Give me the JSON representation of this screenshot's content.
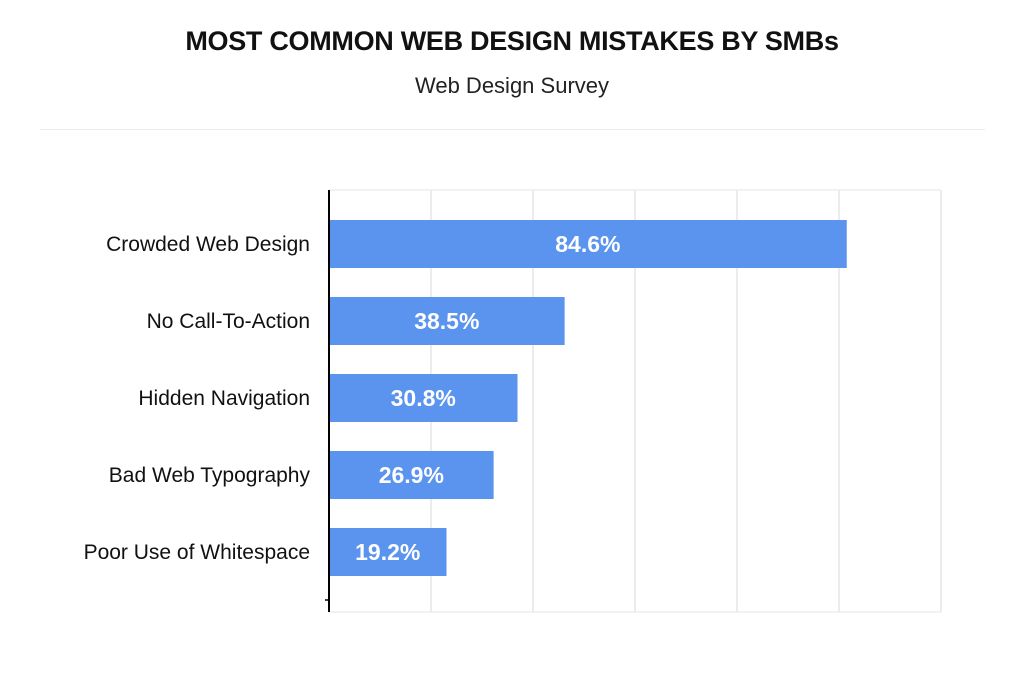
{
  "header": {
    "title": "MOST COMMON WEB DESIGN MISTAKES BY SMBs",
    "subtitle": "Web Design Survey"
  },
  "colors": {
    "bar": "#5b94ee",
    "grid": "#e6e6e6",
    "axis": "#000000"
  },
  "chart_data": {
    "type": "bar",
    "orientation": "horizontal",
    "title": "MOST COMMON WEB DESIGN MISTAKES BY SMBs",
    "subtitle": "Web Design Survey",
    "categories": [
      "Crowded Web Design",
      "No Call-To-Action",
      "Hidden Navigation",
      "Bad Web Typography",
      "Poor Use of Whitespace"
    ],
    "values": [
      84.6,
      38.5,
      30.8,
      26.9,
      19.2
    ],
    "value_labels": [
      "84.6%",
      "38.5%",
      "30.8%",
      "26.9%",
      "19.2%"
    ],
    "xlim": [
      0,
      100
    ],
    "grid": true,
    "legend": "none",
    "xlabel": "",
    "ylabel": ""
  }
}
